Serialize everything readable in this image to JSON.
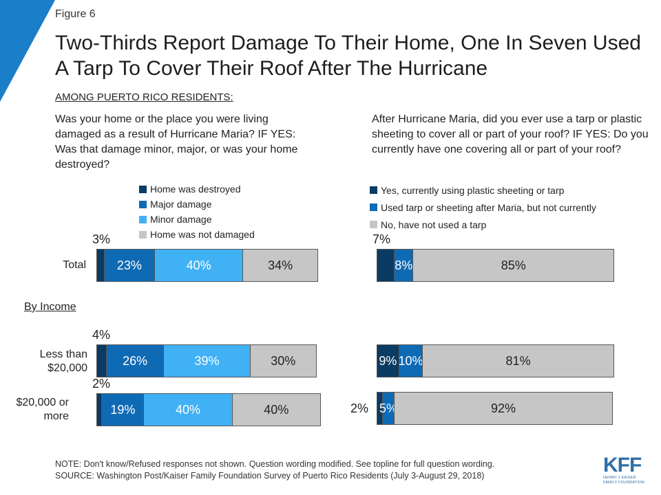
{
  "figure_label": "Figure 6",
  "title": "Two-Thirds Report Damage To Their Home, One In Seven Used A Tarp To Cover Their Roof After The Hurricane",
  "subtitle": "AMONG PUERTO RICO RESIDENTS:",
  "section_label": "By Income",
  "note": "NOTE: Don't know/Refused responses not shown. Question wording modified. See topline for full question wording.",
  "source": "SOURCE: Washington Post/Kaiser Family Foundation Survey of Puerto Rico Residents (July 3-August 29, 2018)",
  "logo": {
    "letters": "KFF",
    "line1": "HENRY J KAISER",
    "line2": "FAMILY FOUNDATION"
  },
  "colors": {
    "corner": "#1a7ec9"
  },
  "chart_data": [
    {
      "type": "bar",
      "orientation": "horizontal-stacked",
      "question": "Was your home or the place you were living damaged as a result of Hurricane Maria? IF YES: Was that damage minor, major, or was your home destroyed?",
      "categories": [
        "Total",
        "Less than $20,000",
        "$20,000 or more"
      ],
      "series": [
        {
          "name": "Home was destroyed",
          "color": "#0b3a62",
          "values": [
            3,
            4,
            2
          ]
        },
        {
          "name": "Major damage",
          "color": "#0f6ab4",
          "values": [
            23,
            26,
            19
          ]
        },
        {
          "name": "Minor damage",
          "color": "#41b1f5",
          "values": [
            40,
            39,
            40
          ]
        },
        {
          "name": "Home was not damaged",
          "color": "#c6c6c6",
          "values": [
            34,
            30,
            40
          ]
        }
      ],
      "xlim": [
        0,
        100
      ],
      "legend": "top"
    },
    {
      "type": "bar",
      "orientation": "horizontal-stacked",
      "question": "After Hurricane Maria, did you ever use a tarp or plastic sheeting to cover all or part of your roof? IF YES: Do you currently have one covering all or part of your roof?",
      "categories": [
        "Total",
        "Less than $20,000",
        "$20,000 or more"
      ],
      "series": [
        {
          "name": "Yes, currently using plastic sheeting or tarp",
          "color": "#0b3a62",
          "values": [
            7,
            9,
            2
          ]
        },
        {
          "name": "Used tarp or sheeting after Maria, but not currently",
          "color": "#0f6ab4",
          "values": [
            8,
            10,
            5
          ]
        },
        {
          "name": "No, have not used a tarp",
          "color": "#c6c6c6",
          "values": [
            85,
            81,
            92
          ]
        }
      ],
      "xlim": [
        0,
        100
      ],
      "legend": "top"
    }
  ]
}
